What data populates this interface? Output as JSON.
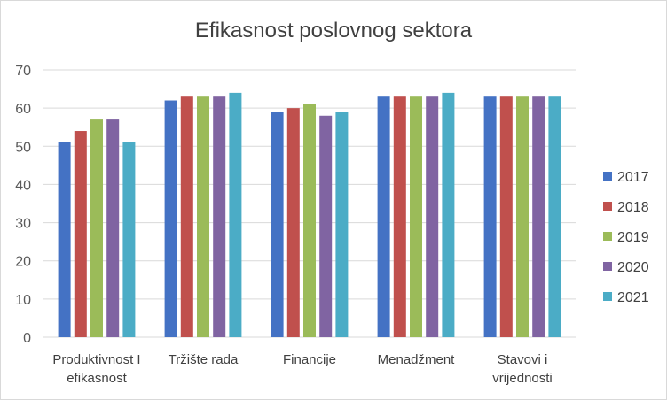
{
  "chart_data": {
    "type": "bar",
    "title": "Efikasnost poslovnog sektora",
    "categories": [
      [
        "Produktivnost I",
        "efikasnost"
      ],
      [
        "Tržište rada"
      ],
      [
        "Financije"
      ],
      [
        "Menadžment"
      ],
      [
        "Stavovi i",
        "vrijednosti"
      ]
    ],
    "series": [
      {
        "name": "2017",
        "color": "#4472c4",
        "values": [
          51,
          62,
          59,
          63,
          63
        ]
      },
      {
        "name": "2018",
        "color": "#c0504d",
        "values": [
          54,
          63,
          60,
          63,
          63
        ]
      },
      {
        "name": "2019",
        "color": "#9bbb59",
        "values": [
          57,
          63,
          61,
          63,
          63
        ]
      },
      {
        "name": "2020",
        "color": "#8064a2",
        "values": [
          57,
          63,
          58,
          63,
          63
        ]
      },
      {
        "name": "2021",
        "color": "#4bacc6",
        "values": [
          51,
          64,
          59,
          64,
          63
        ]
      }
    ],
    "ylim": [
      0,
      70
    ],
    "yticks": [
      0,
      10,
      20,
      30,
      40,
      50,
      60,
      70
    ],
    "grid": true,
    "legend": "right"
  }
}
